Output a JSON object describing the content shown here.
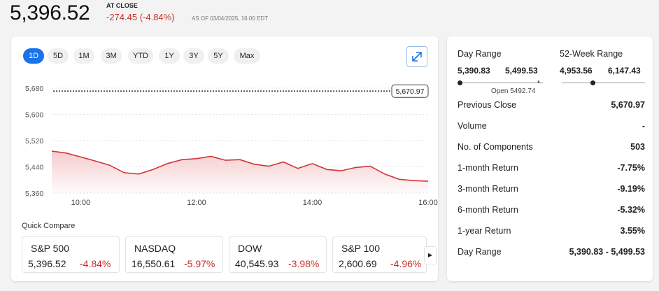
{
  "header": {
    "price": "5,396.52",
    "at_close": "AT CLOSE",
    "change": "-274.45 (-4.84%)",
    "as_of": "AS OF 03/04/2025, 16:00 EDT"
  },
  "ranges": [
    "1D",
    "5D",
    "1M",
    "3M",
    "YTD",
    "1Y",
    "3Y",
    "5Y",
    "Max"
  ],
  "active_range": "1D",
  "chart_data": {
    "type": "area",
    "y_ticks": [
      "5,680",
      "5,600",
      "5,520",
      "5,440",
      "5,360"
    ],
    "x_ticks": [
      "10:00",
      "12:00",
      "14:00",
      "16:00"
    ],
    "ylim": [
      5360,
      5680
    ],
    "previous_close": 5670.97,
    "previous_close_label": "5,670.97",
    "x": [
      9.5,
      9.75,
      10.0,
      10.25,
      10.5,
      10.75,
      11.0,
      11.25,
      11.5,
      11.75,
      12.0,
      12.25,
      12.5,
      12.75,
      13.0,
      13.25,
      13.5,
      13.75,
      14.0,
      14.25,
      14.5,
      14.75,
      15.0,
      15.25,
      15.5,
      15.75,
      16.0
    ],
    "values": [
      5488,
      5482,
      5470,
      5458,
      5445,
      5422,
      5418,
      5432,
      5450,
      5462,
      5465,
      5472,
      5460,
      5462,
      5448,
      5442,
      5455,
      5435,
      5450,
      5432,
      5428,
      5438,
      5442,
      5418,
      5402,
      5398,
      5396
    ],
    "colors": {
      "line": "#d13438",
      "fill": "#f6c9ca",
      "prev_close_line": "#555555"
    }
  },
  "quick_compare": {
    "label": "Quick Compare",
    "items": [
      {
        "name": "S&P 500",
        "value": "5,396.52",
        "change": "-4.84%"
      },
      {
        "name": "NASDAQ",
        "value": "16,550.61",
        "change": "-5.97%"
      },
      {
        "name": "DOW",
        "value": "40,545.93",
        "change": "-3.98%"
      },
      {
        "name": "S&P 100",
        "value": "2,600.69",
        "change": "-4.96%"
      }
    ],
    "next_icon": "play-right-icon"
  },
  "stats": {
    "day_range": {
      "label": "Day Range",
      "low": "5,390.83",
      "high": "5,499.53",
      "open_label": "Open 5492.74",
      "position": 0.0,
      "open_position": 0.95
    },
    "week52_range": {
      "label": "52-Week Range",
      "low": "4,953.56",
      "high": "6,147.43",
      "position": 0.37
    },
    "rows": [
      {
        "label": "Previous Close",
        "value": "5,670.97"
      },
      {
        "label": "Volume",
        "value": "-"
      },
      {
        "label": "No. of Components",
        "value": "503"
      },
      {
        "label": "1-month Return",
        "value": "-7.75%"
      },
      {
        "label": "3-month Return",
        "value": "-9.19%"
      },
      {
        "label": "6-month Return",
        "value": "-5.32%"
      },
      {
        "label": "1-year Return",
        "value": "3.55%"
      },
      {
        "label": "Day Range",
        "value": "5,390.83 - 5,499.53"
      }
    ]
  },
  "accent_color": "#1a73e8",
  "negative_color": "#c4302b"
}
